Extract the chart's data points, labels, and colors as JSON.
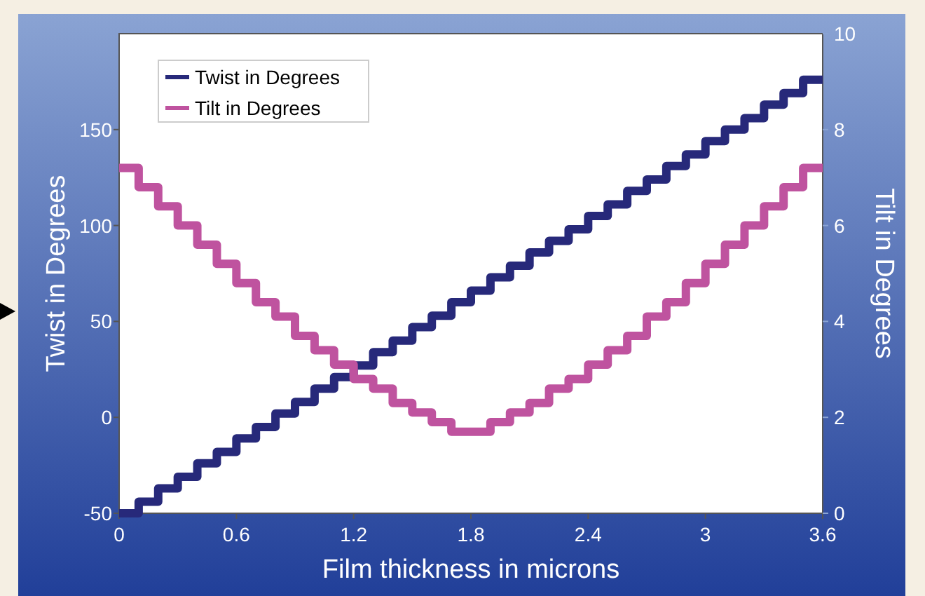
{
  "chart_data": {
    "type": "step",
    "xlabel": "Film thickness in microns",
    "ylabel": "Twist in Degrees",
    "y2label": "Tilt in Degrees",
    "x": [
      0,
      0.1,
      0.2,
      0.3,
      0.4,
      0.5,
      0.6,
      0.7,
      0.8,
      0.9,
      1,
      1.1,
      1.2,
      1.3,
      1.4,
      1.5,
      1.6,
      1.7,
      1.8,
      1.9,
      2,
      2.1,
      2.2,
      2.3,
      2.4,
      2.5,
      2.6,
      2.7,
      2.8,
      2.9,
      3,
      3.1,
      3.2,
      3.3,
      3.4,
      3.5,
      3.6
    ],
    "series": [
      {
        "name": "Twist in Degrees",
        "color": "#27297a",
        "values": [
          -50,
          -44,
          -37,
          -31,
          -24,
          -18,
          -11,
          -5,
          2,
          8,
          15,
          21,
          27,
          34,
          40,
          47,
          53,
          60,
          66,
          73,
          79,
          86,
          92,
          98,
          105,
          111,
          118,
          124,
          131,
          137,
          144,
          150,
          156,
          163,
          169,
          176,
          176
        ]
      },
      {
        "name": "Tilt in Degrees",
        "color": "#bf539f",
        "axis": "y2",
        "values": [
          7.2,
          6.8,
          6.4,
          6.0,
          5.6,
          5.2,
          4.8,
          4.4,
          4.1,
          3.7,
          3.4,
          3.1,
          2.8,
          2.6,
          2.3,
          2.1,
          1.9,
          1.7,
          1.7,
          1.9,
          2.1,
          2.3,
          2.6,
          2.8,
          3.1,
          3.4,
          3.7,
          4.1,
          4.4,
          4.8,
          5.2,
          5.6,
          6.0,
          6.4,
          6.8,
          7.2,
          7.2
        ]
      }
    ],
    "xlim": [
      0,
      3.6
    ],
    "xticks": [
      0,
      0.6,
      1.2,
      1.8,
      2.4,
      3,
      3.6
    ],
    "ylim": [
      -50,
      200
    ],
    "yticks": [
      -50,
      0,
      50,
      100,
      150
    ],
    "y2lim": [
      0,
      10
    ],
    "y2ticks": [
      0,
      2,
      4,
      6,
      8,
      10
    ],
    "grid": false,
    "legend": "top left",
    "line_style": "solid"
  }
}
